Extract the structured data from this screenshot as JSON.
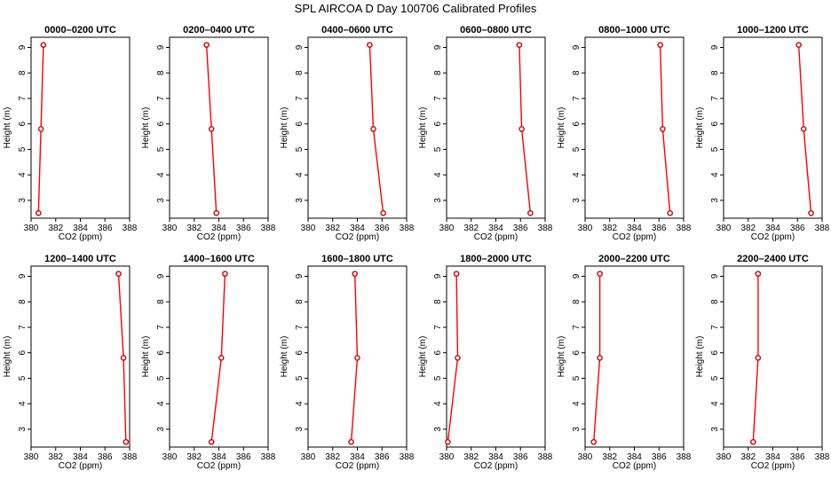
{
  "title": "SPL AIRCOA D  Day 100706  Calibrated Profiles",
  "style": {
    "line_color": "#ff0000",
    "marker_color": "#cc0000",
    "axis_color": "#000000"
  },
  "chart_data": [
    {
      "type": "line",
      "title": "0000–0200 UTC",
      "xlabel": "CO2 (ppm)",
      "ylabel": "Height (m)",
      "xlim": [
        380,
        388
      ],
      "ylim": [
        2.3,
        9.4
      ],
      "x_ticks": [
        "380",
        "382",
        "384",
        "386",
        "388"
      ],
      "y_ticks": [
        "3",
        "4",
        "5",
        "6",
        "7",
        "8",
        "9"
      ],
      "x": [
        380.6,
        380.8,
        381.0
      ],
      "y": [
        2.5,
        5.8,
        9.1
      ]
    },
    {
      "type": "line",
      "title": "0200–0400 UTC",
      "xlabel": "CO2 (ppm)",
      "ylabel": "Height (m)",
      "xlim": [
        380,
        388
      ],
      "ylim": [
        2.3,
        9.4
      ],
      "x_ticks": [
        "380",
        "382",
        "384",
        "386",
        "388"
      ],
      "y_ticks": [
        "3",
        "4",
        "5",
        "6",
        "7",
        "8",
        "9"
      ],
      "x": [
        383.8,
        383.4,
        383.0
      ],
      "y": [
        2.5,
        5.8,
        9.1
      ]
    },
    {
      "type": "line",
      "title": "0400–0600 UTC",
      "xlabel": "CO2 (ppm)",
      "ylabel": "Height (m)",
      "xlim": [
        380,
        388
      ],
      "ylim": [
        2.3,
        9.4
      ],
      "x_ticks": [
        "380",
        "382",
        "384",
        "386",
        "388"
      ],
      "y_ticks": [
        "3",
        "4",
        "5",
        "6",
        "7",
        "8",
        "9"
      ],
      "x": [
        386.1,
        385.3,
        385.0
      ],
      "y": [
        2.5,
        5.8,
        9.1
      ]
    },
    {
      "type": "line",
      "title": "0600–0800 UTC",
      "xlabel": "CO2 (ppm)",
      "ylabel": "Height (m)",
      "xlim": [
        380,
        388
      ],
      "ylim": [
        2.3,
        9.4
      ],
      "x_ticks": [
        "380",
        "382",
        "384",
        "386",
        "388"
      ],
      "y_ticks": [
        "3",
        "4",
        "5",
        "6",
        "7",
        "8",
        "9"
      ],
      "x": [
        386.8,
        386.1,
        385.9
      ],
      "y": [
        2.5,
        5.8,
        9.1
      ]
    },
    {
      "type": "line",
      "title": "0800–1000 UTC",
      "xlabel": "CO2 (ppm)",
      "ylabel": "Height (m)",
      "xlim": [
        380,
        388
      ],
      "ylim": [
        2.3,
        9.4
      ],
      "x_ticks": [
        "380",
        "382",
        "384",
        "386",
        "388"
      ],
      "y_ticks": [
        "3",
        "4",
        "5",
        "6",
        "7",
        "8",
        "9"
      ],
      "x": [
        386.9,
        386.3,
        386.1
      ],
      "y": [
        2.5,
        5.8,
        9.1
      ]
    },
    {
      "type": "line",
      "title": "1000–1200 UTC",
      "xlabel": "CO2 (ppm)",
      "ylabel": "Height (m)",
      "xlim": [
        380,
        388
      ],
      "ylim": [
        2.3,
        9.4
      ],
      "x_ticks": [
        "380",
        "382",
        "384",
        "386",
        "388"
      ],
      "y_ticks": [
        "3",
        "4",
        "5",
        "6",
        "7",
        "8",
        "9"
      ],
      "x": [
        387.1,
        386.5,
        386.1
      ],
      "y": [
        2.5,
        5.8,
        9.1
      ]
    },
    {
      "type": "line",
      "title": "1200–1400 UTC",
      "xlabel": "CO2 (ppm)",
      "ylabel": "Height (m)",
      "xlim": [
        380,
        388
      ],
      "ylim": [
        2.3,
        9.4
      ],
      "x_ticks": [
        "380",
        "382",
        "384",
        "386",
        "388"
      ],
      "y_ticks": [
        "3",
        "4",
        "5",
        "6",
        "7",
        "8",
        "9"
      ],
      "x": [
        387.7,
        387.5,
        387.1
      ],
      "y": [
        2.5,
        5.8,
        9.1
      ]
    },
    {
      "type": "line",
      "title": "1400–1600 UTC",
      "xlabel": "CO2 (ppm)",
      "ylabel": "Height (m)",
      "xlim": [
        380,
        388
      ],
      "ylim": [
        2.3,
        9.4
      ],
      "x_ticks": [
        "380",
        "382",
        "384",
        "386",
        "388"
      ],
      "y_ticks": [
        "3",
        "4",
        "5",
        "6",
        "7",
        "8",
        "9"
      ],
      "x": [
        383.4,
        384.2,
        384.5
      ],
      "y": [
        2.5,
        5.8,
        9.1
      ]
    },
    {
      "type": "line",
      "title": "1600–1800 UTC",
      "xlabel": "CO2 (ppm)",
      "ylabel": "Height (m)",
      "xlim": [
        380,
        388
      ],
      "ylim": [
        2.3,
        9.4
      ],
      "x_ticks": [
        "380",
        "382",
        "384",
        "386",
        "388"
      ],
      "y_ticks": [
        "3",
        "4",
        "5",
        "6",
        "7",
        "8",
        "9"
      ],
      "x": [
        383.5,
        384.0,
        383.8
      ],
      "y": [
        2.5,
        5.8,
        9.1
      ]
    },
    {
      "type": "line",
      "title": "1800–2000 UTC",
      "xlabel": "CO2 (ppm)",
      "ylabel": "Height (m)",
      "xlim": [
        380,
        388
      ],
      "ylim": [
        2.3,
        9.4
      ],
      "x_ticks": [
        "380",
        "382",
        "384",
        "386",
        "388"
      ],
      "y_ticks": [
        "3",
        "4",
        "5",
        "6",
        "7",
        "8",
        "9"
      ],
      "x": [
        380.1,
        380.9,
        380.8
      ],
      "y": [
        2.5,
        5.8,
        9.1
      ]
    },
    {
      "type": "line",
      "title": "2000–2200 UTC",
      "xlabel": "CO2 (ppm)",
      "ylabel": "Height (m)",
      "xlim": [
        380,
        388
      ],
      "ylim": [
        2.3,
        9.4
      ],
      "x_ticks": [
        "380",
        "382",
        "384",
        "386",
        "388"
      ],
      "y_ticks": [
        "3",
        "4",
        "5",
        "6",
        "7",
        "8",
        "9"
      ],
      "x": [
        380.7,
        381.2,
        381.2
      ],
      "y": [
        2.5,
        5.8,
        9.1
      ]
    },
    {
      "type": "line",
      "title": "2200–2400 UTC",
      "xlabel": "CO2 (ppm)",
      "ylabel": "Height (m)",
      "xlim": [
        380,
        388
      ],
      "ylim": [
        2.3,
        9.4
      ],
      "x_ticks": [
        "380",
        "382",
        "384",
        "386",
        "388"
      ],
      "y_ticks": [
        "3",
        "4",
        "5",
        "6",
        "7",
        "8",
        "9"
      ],
      "x": [
        382.4,
        382.8,
        382.8
      ],
      "y": [
        2.5,
        5.8,
        9.1
      ]
    }
  ]
}
